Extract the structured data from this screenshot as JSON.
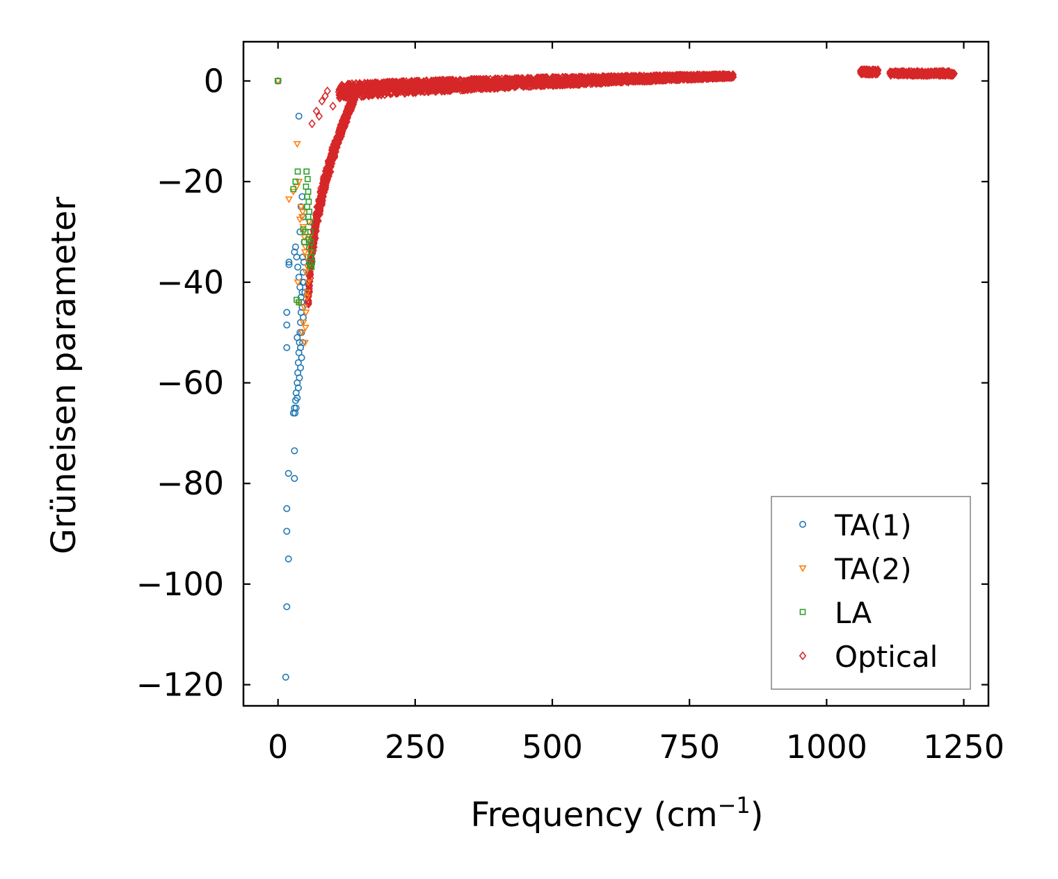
{
  "chart_data": {
    "type": "scatter",
    "title": "",
    "xlabel": "Frequency (cm",
    "xlabel_sup": "−1",
    "xlabel_close": ")",
    "ylabel": "Grüneisen parameter",
    "xlim": [
      -63,
      1295
    ],
    "ylim": [
      -124.2,
      7.8
    ],
    "xticks": [
      0,
      250,
      500,
      750,
      1000,
      1250
    ],
    "xtick_labels": [
      "0",
      "250",
      "500",
      "750",
      "1000",
      "1250"
    ],
    "yticks": [
      0,
      -20,
      -40,
      -60,
      -80,
      -100,
      -120
    ],
    "ytick_labels": [
      "0",
      "−20",
      "−40",
      "−60",
      "−80",
      "−100",
      "−120"
    ],
    "grid": false,
    "legend_position": "bottom-right",
    "colors": {
      "ta1": "#1f77b4",
      "ta2": "#ff7f0e",
      "la": "#2ca02c",
      "optical": "#d62728",
      "axis": "#000000",
      "legend_border": "#808080"
    },
    "series": [
      {
        "name": "TA(1)",
        "key": "ta1",
        "marker": "circle",
        "points": [
          [
            0,
            0
          ],
          [
            38,
            -7
          ],
          [
            14,
            -118.5
          ],
          [
            16,
            -104.5
          ],
          [
            19,
            -95
          ],
          [
            16,
            -89.5
          ],
          [
            16,
            -85
          ],
          [
            19,
            -78
          ],
          [
            30,
            -79
          ],
          [
            30,
            -73.5
          ],
          [
            16,
            -53
          ],
          [
            16,
            -48.5
          ],
          [
            16,
            -46
          ],
          [
            20,
            -36.5
          ],
          [
            20,
            -36
          ],
          [
            28,
            -66
          ],
          [
            30,
            -65
          ],
          [
            32,
            -63.5
          ],
          [
            33,
            -62
          ],
          [
            35,
            -60
          ],
          [
            36,
            -58
          ],
          [
            37,
            -56
          ],
          [
            38,
            -54
          ],
          [
            39,
            -52
          ],
          [
            40,
            -50
          ],
          [
            41,
            -48
          ],
          [
            42,
            -46
          ],
          [
            43,
            -44
          ],
          [
            44,
            -42
          ],
          [
            45,
            -40
          ],
          [
            46,
            -38
          ],
          [
            47,
            -36
          ],
          [
            30,
            -34
          ],
          [
            32,
            -33
          ],
          [
            34,
            -35
          ],
          [
            36,
            -37
          ],
          [
            38,
            -39
          ],
          [
            40,
            -41
          ],
          [
            42,
            -43
          ],
          [
            44,
            -45
          ],
          [
            46,
            -47
          ],
          [
            45,
            -52
          ],
          [
            43,
            -55
          ],
          [
            41,
            -57
          ],
          [
            39,
            -59
          ],
          [
            37,
            -61
          ],
          [
            35,
            -63
          ],
          [
            33,
            -65
          ],
          [
            31,
            -66
          ],
          [
            42,
            -25
          ],
          [
            44,
            -23
          ],
          [
            46,
            -27
          ],
          [
            40,
            -30
          ],
          [
            48,
            -32
          ],
          [
            45,
            -35
          ],
          [
            47,
            -40
          ],
          [
            49,
            -42
          ],
          [
            43,
            -50
          ],
          [
            41,
            -53
          ],
          [
            35,
            -51
          ]
        ]
      },
      {
        "name": "TA(2)",
        "key": "ta2",
        "marker": "triangle",
        "points": [
          [
            0,
            0
          ],
          [
            35,
            -12.5
          ],
          [
            20,
            -23.5
          ],
          [
            28,
            -22
          ],
          [
            34,
            -21
          ],
          [
            38,
            -20
          ],
          [
            42,
            -25
          ],
          [
            44,
            -27
          ],
          [
            46,
            -29
          ],
          [
            48,
            -31
          ],
          [
            50,
            -33
          ],
          [
            52,
            -35
          ],
          [
            54,
            -37
          ],
          [
            55,
            -40
          ],
          [
            53,
            -43
          ],
          [
            51,
            -46
          ],
          [
            50,
            -49
          ],
          [
            49,
            -52
          ],
          [
            45,
            -26
          ],
          [
            40,
            -27.5
          ],
          [
            47,
            -30
          ],
          [
            49,
            -34
          ],
          [
            51,
            -38
          ],
          [
            53,
            -42
          ],
          [
            48,
            -45
          ],
          [
            46,
            -48
          ],
          [
            44,
            -50
          ],
          [
            56,
            -28
          ],
          [
            57,
            -31
          ],
          [
            58,
            -34
          ],
          [
            36,
            -40
          ],
          [
            38,
            -44
          ]
        ]
      },
      {
        "name": "LA",
        "key": "la",
        "marker": "square",
        "points": [
          [
            0,
            0
          ],
          [
            36,
            -18
          ],
          [
            32,
            -20
          ],
          [
            28,
            -21.5
          ],
          [
            52,
            -18
          ],
          [
            54,
            -19.5
          ],
          [
            55,
            -22
          ],
          [
            56,
            -24
          ],
          [
            57,
            -26
          ],
          [
            58,
            -28
          ],
          [
            59,
            -30
          ],
          [
            60,
            -32
          ],
          [
            61,
            -34
          ],
          [
            62,
            -36
          ],
          [
            50,
            -30
          ],
          [
            48,
            -32
          ],
          [
            46,
            -29.5
          ],
          [
            53,
            -25
          ],
          [
            55,
            -27
          ],
          [
            57,
            -33
          ],
          [
            59,
            -35
          ],
          [
            61,
            -37
          ],
          [
            34,
            -43.5
          ],
          [
            38,
            -44
          ],
          [
            51,
            -21
          ],
          [
            53,
            -23
          ],
          [
            56,
            -31.5
          ],
          [
            58,
            -36.5
          ]
        ]
      },
      {
        "name": "Optical",
        "key": "optical",
        "marker": "diamond",
        "points": []
      }
    ],
    "optical_model": {
      "description": "dense band of optical modes",
      "low_branch": {
        "x_range": [
          55,
          140
        ],
        "y_at_start": -45,
        "y_at_end": -2
      },
      "main_band": {
        "x_range": [
          110,
          830
        ],
        "y_at_start": -2.2,
        "y_at_end": 1.0
      },
      "high_cluster_1": {
        "x_range": [
          1062,
          1095
        ],
        "y": 1.8
      },
      "high_cluster_2": {
        "x_range": [
          1115,
          1233
        ],
        "y": 1.5
      },
      "scattered": [
        [
          90,
          -2
        ],
        [
          86,
          -3
        ],
        [
          70,
          -6
        ],
        [
          62,
          -8.5
        ],
        [
          80,
          -4
        ],
        [
          75,
          -7
        ],
        [
          100,
          -5
        ]
      ]
    }
  }
}
